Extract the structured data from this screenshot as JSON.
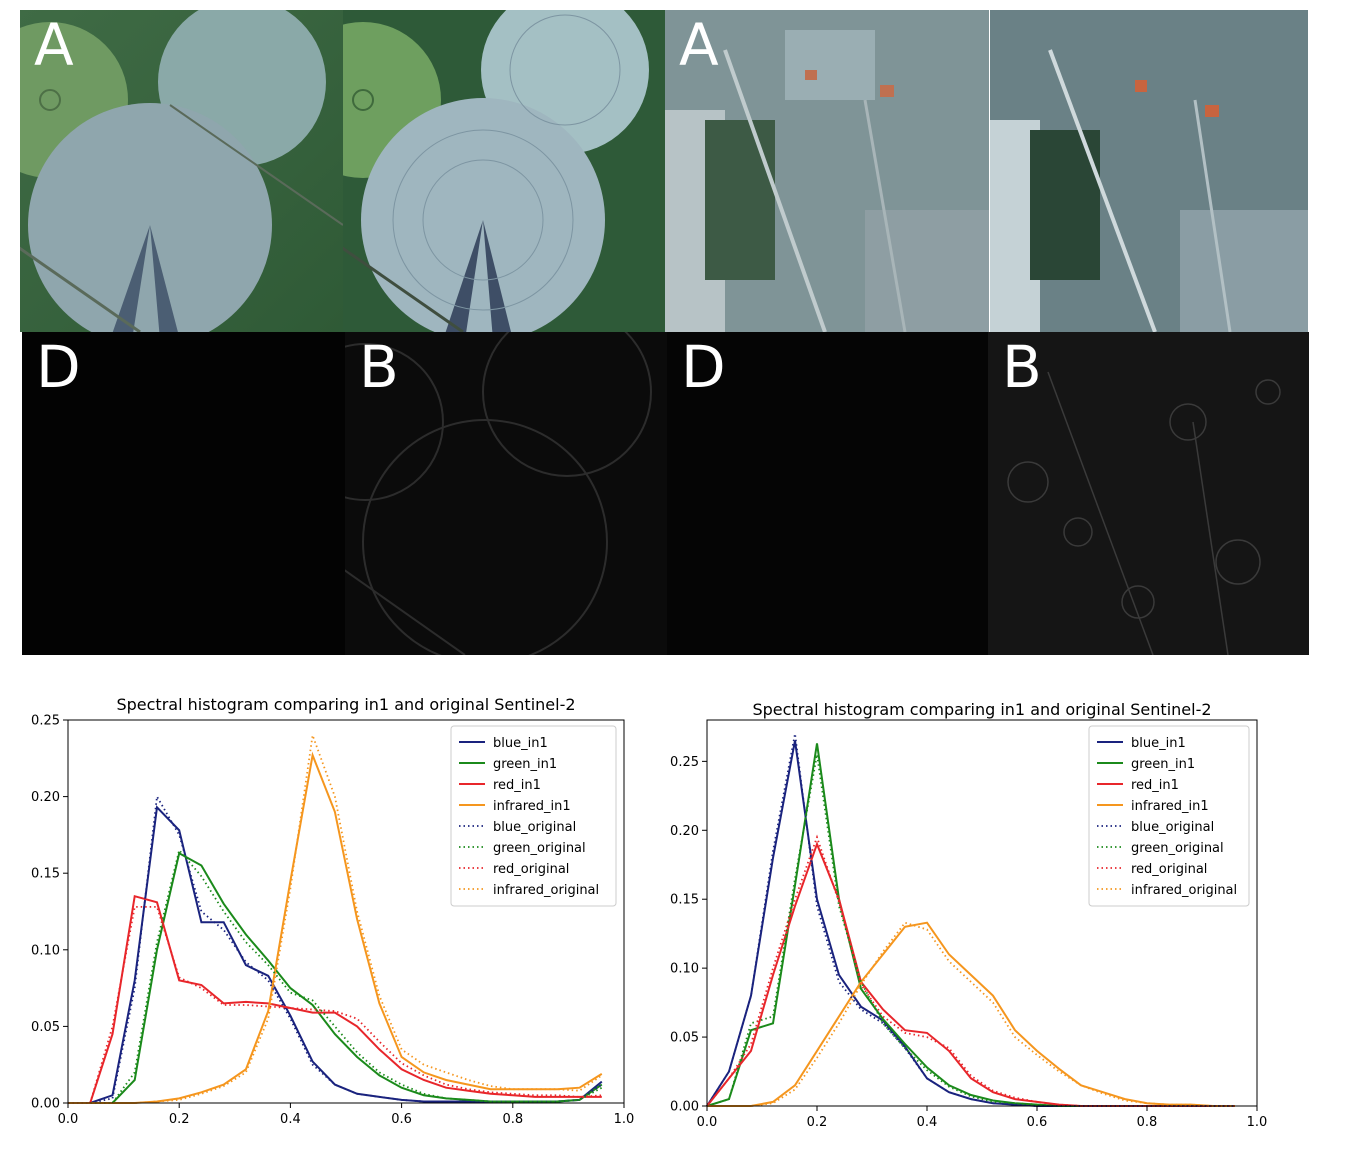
{
  "tiles": [
    {
      "letter": "A"
    },
    {
      "letter": ""
    },
    {
      "letter": "A"
    },
    {
      "letter": ""
    },
    {
      "letter": "D"
    },
    {
      "letter": "B"
    },
    {
      "letter": "D"
    },
    {
      "letter": "B"
    }
  ],
  "chart_data": [
    {
      "type": "line",
      "title": "Spectral histogram comparing in1 and original Sentinel-2",
      "xlabel": "",
      "ylabel": "",
      "xlim": [
        0.0,
        1.0
      ],
      "ylim": [
        0.0,
        0.25
      ],
      "xticks": [
        "0.0",
        "0.2",
        "0.4",
        "0.6",
        "0.8",
        "1.0"
      ],
      "yticks": [
        "0.00",
        "0.05",
        "0.10",
        "0.15",
        "0.20",
        "0.25"
      ],
      "grid": false,
      "legend_position": "top-right",
      "x": [
        0.0,
        0.04,
        0.08,
        0.12,
        0.16,
        0.2,
        0.24,
        0.28,
        0.32,
        0.36,
        0.4,
        0.44,
        0.48,
        0.52,
        0.56,
        0.6,
        0.64,
        0.68,
        0.72,
        0.76,
        0.8,
        0.84,
        0.88,
        0.92,
        0.96
      ],
      "series": [
        {
          "name": "blue_in1",
          "color": "#1a237e",
          "style": "solid",
          "values": [
            0.0,
            0.0,
            0.005,
            0.08,
            0.193,
            0.178,
            0.118,
            0.118,
            0.09,
            0.083,
            0.057,
            0.027,
            0.012,
            0.006,
            0.004,
            0.002,
            0.001,
            0.001,
            0.001,
            0.001,
            0.001,
            0.001,
            0.001,
            0.002,
            0.014
          ]
        },
        {
          "name": "green_in1",
          "color": "#1b8a1b",
          "style": "solid",
          "values": [
            0.0,
            0.0,
            0.0,
            0.015,
            0.1,
            0.163,
            0.155,
            0.13,
            0.11,
            0.093,
            0.075,
            0.064,
            0.045,
            0.03,
            0.018,
            0.01,
            0.005,
            0.003,
            0.002,
            0.001,
            0.001,
            0.001,
            0.001,
            0.002,
            0.012
          ]
        },
        {
          "name": "red_in1",
          "color": "#e8262b",
          "style": "solid",
          "values": [
            0.0,
            0.0,
            0.045,
            0.135,
            0.131,
            0.08,
            0.077,
            0.065,
            0.066,
            0.065,
            0.062,
            0.059,
            0.059,
            0.05,
            0.035,
            0.022,
            0.015,
            0.01,
            0.008,
            0.006,
            0.005,
            0.004,
            0.004,
            0.004,
            0.004
          ]
        },
        {
          "name": "infrared_in1",
          "color": "#f5961e",
          "style": "solid",
          "values": [
            0.0,
            0.0,
            0.0,
            0.0,
            0.001,
            0.003,
            0.007,
            0.012,
            0.022,
            0.06,
            0.145,
            0.227,
            0.19,
            0.12,
            0.065,
            0.03,
            0.02,
            0.015,
            0.012,
            0.009,
            0.009,
            0.009,
            0.009,
            0.01,
            0.019
          ]
        },
        {
          "name": "blue_original",
          "color": "#1a237e",
          "style": "dotted",
          "values": [
            0.0,
            0.0,
            0.003,
            0.075,
            0.2,
            0.175,
            0.125,
            0.113,
            0.092,
            0.08,
            0.055,
            0.025,
            0.012,
            0.006,
            0.004,
            0.002,
            0.001,
            0.001,
            0.001,
            0.001,
            0.001,
            0.001,
            0.001,
            0.002,
            0.012
          ]
        },
        {
          "name": "green_original",
          "color": "#1b8a1b",
          "style": "dotted",
          "values": [
            0.0,
            0.0,
            0.0,
            0.02,
            0.105,
            0.165,
            0.148,
            0.125,
            0.105,
            0.09,
            0.072,
            0.067,
            0.05,
            0.033,
            0.02,
            0.012,
            0.006,
            0.003,
            0.002,
            0.001,
            0.001,
            0.001,
            0.001,
            0.002,
            0.01
          ]
        },
        {
          "name": "red_original",
          "color": "#e8262b",
          "style": "dotted",
          "values": [
            0.0,
            0.0,
            0.05,
            0.128,
            0.128,
            0.082,
            0.075,
            0.064,
            0.064,
            0.063,
            0.062,
            0.061,
            0.06,
            0.055,
            0.04,
            0.026,
            0.018,
            0.012,
            0.009,
            0.007,
            0.006,
            0.005,
            0.005,
            0.004,
            0.005
          ]
        },
        {
          "name": "infrared_original",
          "color": "#f5961e",
          "style": "dotted",
          "values": [
            0.0,
            0.0,
            0.0,
            0.0,
            0.001,
            0.002,
            0.006,
            0.011,
            0.02,
            0.055,
            0.14,
            0.24,
            0.2,
            0.125,
            0.07,
            0.035,
            0.025,
            0.02,
            0.015,
            0.011,
            0.009,
            0.009,
            0.009,
            0.008,
            0.018
          ]
        }
      ]
    },
    {
      "type": "line",
      "title": "Spectral histogram comparing in1 and original Sentinel-2",
      "xlabel": "",
      "ylabel": "",
      "xlim": [
        0.0,
        1.0
      ],
      "ylim": [
        0.0,
        0.28
      ],
      "xticks": [
        "0.0",
        "0.2",
        "0.4",
        "0.6",
        "0.8",
        "1.0"
      ],
      "yticks": [
        "0.00",
        "0.05",
        "0.10",
        "0.15",
        "0.20",
        "0.25"
      ],
      "grid": false,
      "legend_position": "top-right",
      "x": [
        0.0,
        0.04,
        0.08,
        0.12,
        0.16,
        0.2,
        0.24,
        0.28,
        0.32,
        0.36,
        0.4,
        0.44,
        0.48,
        0.52,
        0.56,
        0.6,
        0.64,
        0.68,
        0.72,
        0.76,
        0.8,
        0.84,
        0.88,
        0.92,
        0.96
      ],
      "series": [
        {
          "name": "blue_in1",
          "color": "#1a237e",
          "style": "solid",
          "values": [
            0.0,
            0.025,
            0.08,
            0.18,
            0.265,
            0.15,
            0.095,
            0.072,
            0.062,
            0.043,
            0.02,
            0.01,
            0.005,
            0.002,
            0.001,
            0.0,
            0.0,
            0.0,
            0.0,
            0.0,
            0.0,
            0.0,
            0.0,
            0.0,
            0.0
          ]
        },
        {
          "name": "green_in1",
          "color": "#1b8a1b",
          "style": "solid",
          "values": [
            0.0,
            0.005,
            0.055,
            0.06,
            0.16,
            0.263,
            0.15,
            0.085,
            0.063,
            0.045,
            0.028,
            0.015,
            0.008,
            0.004,
            0.002,
            0.001,
            0.0,
            0.0,
            0.0,
            0.0,
            0.0,
            0.0,
            0.0,
            0.0,
            0.0
          ]
        },
        {
          "name": "red_in1",
          "color": "#e8262b",
          "style": "solid",
          "values": [
            0.0,
            0.02,
            0.04,
            0.095,
            0.145,
            0.19,
            0.15,
            0.09,
            0.07,
            0.055,
            0.053,
            0.04,
            0.02,
            0.01,
            0.005,
            0.003,
            0.001,
            0.0,
            0.0,
            0.0,
            0.0,
            0.0,
            0.0,
            0.0,
            0.0
          ]
        },
        {
          "name": "infrared_in1",
          "color": "#f5961e",
          "style": "solid",
          "values": [
            0.0,
            0.0,
            0.0,
            0.003,
            0.015,
            0.04,
            0.065,
            0.09,
            0.11,
            0.13,
            0.133,
            0.11,
            0.095,
            0.08,
            0.055,
            0.04,
            0.027,
            0.015,
            0.01,
            0.005,
            0.002,
            0.001,
            0.001,
            0.0,
            0.0
          ]
        },
        {
          "name": "blue_original",
          "color": "#1a237e",
          "style": "dotted",
          "values": [
            0.0,
            0.025,
            0.08,
            0.185,
            0.27,
            0.145,
            0.09,
            0.07,
            0.06,
            0.042,
            0.02,
            0.01,
            0.005,
            0.002,
            0.001,
            0.0,
            0.0,
            0.0,
            0.0,
            0.0,
            0.0,
            0.0,
            0.0,
            0.0,
            0.0
          ]
        },
        {
          "name": "green_original",
          "color": "#1b8a1b",
          "style": "dotted",
          "values": [
            0.0,
            0.005,
            0.06,
            0.065,
            0.165,
            0.255,
            0.145,
            0.09,
            0.06,
            0.042,
            0.026,
            0.014,
            0.007,
            0.003,
            0.002,
            0.001,
            0.0,
            0.0,
            0.0,
            0.0,
            0.0,
            0.0,
            0.0,
            0.0,
            0.0
          ]
        },
        {
          "name": "red_original",
          "color": "#e8262b",
          "style": "dotted",
          "values": [
            0.0,
            0.02,
            0.045,
            0.1,
            0.15,
            0.195,
            0.148,
            0.088,
            0.065,
            0.053,
            0.05,
            0.042,
            0.022,
            0.011,
            0.006,
            0.003,
            0.001,
            0.0,
            0.0,
            0.0,
            0.0,
            0.0,
            0.0,
            0.0,
            0.0
          ]
        },
        {
          "name": "infrared_original",
          "color": "#f5961e",
          "style": "dotted",
          "values": [
            0.0,
            0.0,
            0.0,
            0.002,
            0.012,
            0.035,
            0.06,
            0.088,
            0.112,
            0.133,
            0.128,
            0.105,
            0.09,
            0.075,
            0.05,
            0.037,
            0.025,
            0.015,
            0.009,
            0.004,
            0.002,
            0.001,
            0.001,
            0.0,
            0.0
          ]
        }
      ]
    }
  ]
}
